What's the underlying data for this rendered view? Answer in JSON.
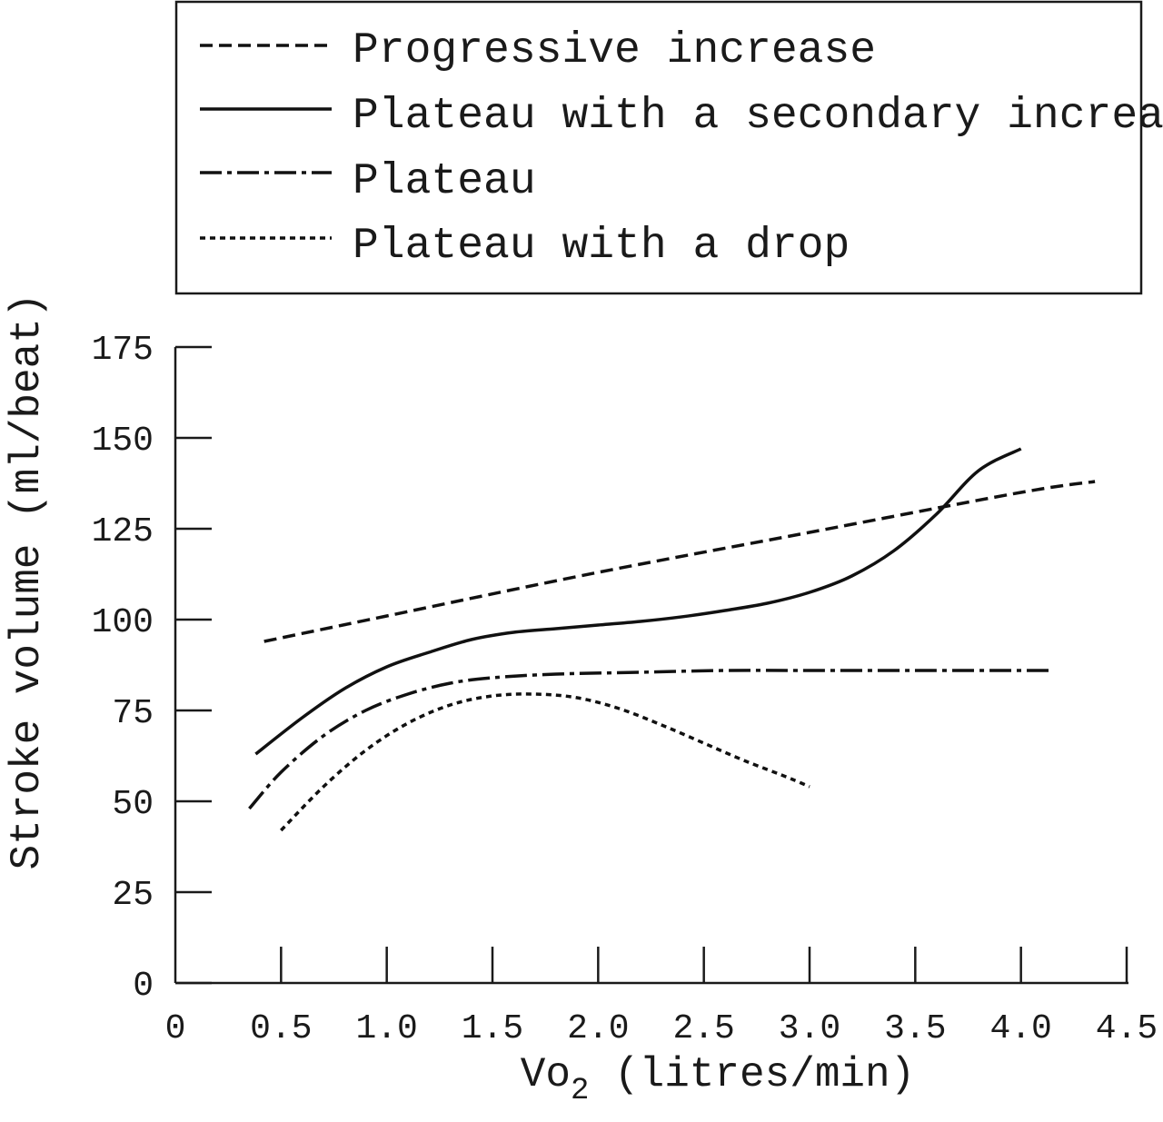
{
  "chart_data": {
    "type": "line",
    "title": "",
    "xlabel_prefix": "Vo",
    "xlabel_subscript": "2",
    "xlabel_suffix": " (litres/min)",
    "ylabel": "Stroke volume (ml/beat)",
    "xlim": [
      0,
      4.5
    ],
    "ylim": [
      0,
      175
    ],
    "x_ticks": [
      "0",
      "0.5",
      "1.0",
      "1.5",
      "2.0",
      "2.5",
      "3.0",
      "3.5",
      "4.0",
      "4.5"
    ],
    "y_ticks": [
      "0",
      "25",
      "50",
      "75",
      "100",
      "125",
      "150",
      "175"
    ],
    "grid": false,
    "legend": {
      "placement": "top",
      "entries": [
        "Progressive increase",
        "Plateau with a secondary increase",
        "Plateau",
        "Plateau with a drop"
      ]
    },
    "series": [
      {
        "name": "Progressive increase",
        "style": "dashed",
        "x": [
          0.42,
          1.0,
          2.0,
          3.0,
          4.0,
          4.35
        ],
        "y": [
          94,
          101,
          113,
          124,
          135,
          138
        ]
      },
      {
        "name": "Plateau with a secondary increase",
        "style": "solid",
        "x": [
          0.38,
          0.6,
          0.8,
          1.0,
          1.2,
          1.4,
          1.6,
          1.8,
          2.0,
          2.2,
          2.4,
          2.6,
          2.8,
          3.0,
          3.2,
          3.4,
          3.6,
          3.8,
          4.0
        ],
        "y": [
          63,
          73,
          81,
          87,
          91,
          94.5,
          96.5,
          97.5,
          98.5,
          99.5,
          100.8,
          102.5,
          104.5,
          107.5,
          112,
          119,
          129,
          141,
          147
        ]
      },
      {
        "name": "Plateau",
        "style": "dash-dot",
        "x": [
          0.35,
          0.5,
          0.7,
          0.9,
          1.1,
          1.3,
          1.5,
          1.8,
          2.2,
          2.6,
          3.0,
          3.5,
          4.0,
          4.15
        ],
        "y": [
          48,
          58,
          68,
          75,
          79.5,
          82.5,
          84,
          85,
          85.5,
          86,
          86,
          86,
          86,
          86
        ]
      },
      {
        "name": "Plateau with a drop",
        "style": "dotted",
        "x": [
          0.5,
          0.7,
          0.9,
          1.1,
          1.3,
          1.5,
          1.7,
          1.9,
          2.1,
          2.3,
          2.5,
          2.7,
          2.9,
          3.0
        ],
        "y": [
          42,
          54,
          64,
          71.5,
          76.5,
          79,
          79.5,
          78.5,
          75.5,
          71,
          66,
          61,
          56.5,
          54
        ]
      }
    ]
  }
}
